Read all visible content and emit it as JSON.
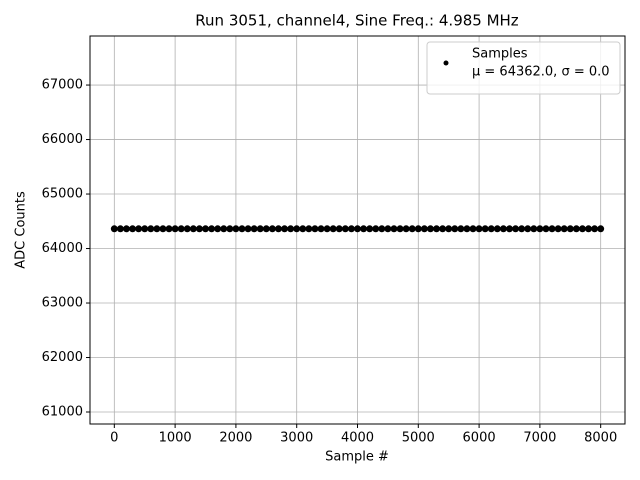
{
  "chart_data": {
    "type": "scatter",
    "title": "Run 3051, channel4, Sine Freq.: 4.985 MHz",
    "x_label": "Sample #",
    "y_label": "ADC Counts",
    "xlim": [
      -400,
      8400
    ],
    "ylim": [
      60780,
      67900
    ],
    "xticks": [
      0,
      1000,
      2000,
      3000,
      4000,
      5000,
      6000,
      7000,
      8000
    ],
    "yticks": [
      61000,
      62000,
      63000,
      64000,
      65000,
      66000,
      67000
    ],
    "grid": true,
    "legend": "upper right",
    "series": [
      {
        "name": "Samples",
        "legend_note": "μ = 64362.0, σ = 0.0",
        "color": "#000000",
        "x": [
          0,
          100,
          200,
          300,
          400,
          500,
          600,
          700,
          800,
          900,
          1000,
          1100,
          1200,
          1300,
          1400,
          1500,
          1600,
          1700,
          1800,
          1900,
          2000,
          2100,
          2200,
          2300,
          2400,
          2500,
          2600,
          2700,
          2800,
          2900,
          3000,
          3100,
          3200,
          3300,
          3400,
          3500,
          3600,
          3700,
          3800,
          3900,
          4000,
          4100,
          4200,
          4300,
          4400,
          4500,
          4600,
          4700,
          4800,
          4900,
          5000,
          5100,
          5200,
          5300,
          5400,
          5500,
          5600,
          5700,
          5800,
          5900,
          6000,
          6100,
          6200,
          6300,
          6400,
          6500,
          6600,
          6700,
          6800,
          6900,
          7000,
          7100,
          7200,
          7300,
          7400,
          7500,
          7600,
          7700,
          7800,
          7900,
          8000
        ],
        "values": [
          64362,
          64362,
          64362,
          64362,
          64362,
          64362,
          64362,
          64362,
          64362,
          64362,
          64362,
          64362,
          64362,
          64362,
          64362,
          64362,
          64362,
          64362,
          64362,
          64362,
          64362,
          64362,
          64362,
          64362,
          64362,
          64362,
          64362,
          64362,
          64362,
          64362,
          64362,
          64362,
          64362,
          64362,
          64362,
          64362,
          64362,
          64362,
          64362,
          64362,
          64362,
          64362,
          64362,
          64362,
          64362,
          64362,
          64362,
          64362,
          64362,
          64362,
          64362,
          64362,
          64362,
          64362,
          64362,
          64362,
          64362,
          64362,
          64362,
          64362,
          64362,
          64362,
          64362,
          64362,
          64362,
          64362,
          64362,
          64362,
          64362,
          64362,
          64362,
          64362,
          64362,
          64362,
          64362,
          64362,
          64362,
          64362,
          64362,
          64362,
          64362
        ]
      }
    ]
  }
}
